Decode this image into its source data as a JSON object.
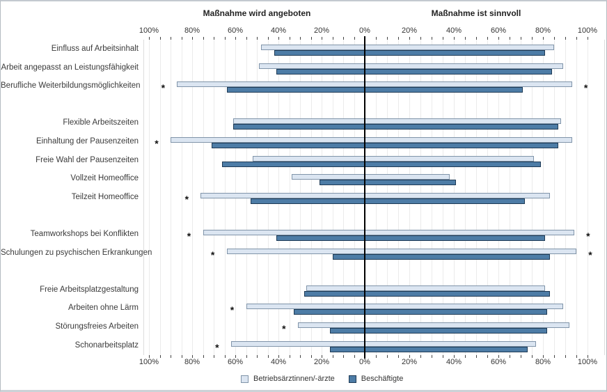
{
  "chart_data": {
    "type": "bar",
    "variant": "diverging-horizontal",
    "left_title": "Maßnahme wird angeboten",
    "right_title": "Maßnahme ist sinnvoll",
    "axis_tick_labels": [
      "100%",
      "80%",
      "60%",
      "40%",
      "20%",
      "0%",
      "20%",
      "40%",
      "60%",
      "80%",
      "100%"
    ],
    "axis_tick_values": [
      -100,
      -80,
      -60,
      -40,
      -20,
      0,
      20,
      40,
      60,
      80,
      100
    ],
    "xlim_left": 100,
    "xlim_right": 100,
    "grid_step_pct": 5,
    "significance_marker": "*",
    "series_names": [
      "Betriebsärztinnen/-ärzte",
      "Beschäftigte"
    ],
    "colors": {
      "betriebsaerzte_fill": "#dbe5f1",
      "betriebsaerzte_border": "#8094a9",
      "beschaeftigte_fill": "#4d7ca6",
      "beschaeftigte_border": "#1e3a55",
      "center_line": "#000000",
      "gridline": "#ebebeb"
    },
    "legend": [
      {
        "label": "Betriebsärztinnen/-ärzte",
        "swatch": "light"
      },
      {
        "label": "Beschäftigte",
        "swatch": "dark"
      }
    ],
    "groups": [
      {
        "rows": [
          {
            "label": "Einfluss auf Arbeitsinhalt",
            "angeboten": {
              "betriebsaerzte": 48,
              "beschaeftigte": 42
            },
            "sinnvoll": {
              "betriebsaerzte": 85,
              "beschaeftigte": 81
            },
            "sig_angeboten": false,
            "sig_sinnvoll": false
          },
          {
            "label": "Arbeit angepasst an Leistungsfähigkeit",
            "angeboten": {
              "betriebsaerzte": 49,
              "beschaeftigte": 41
            },
            "sinnvoll": {
              "betriebsaerzte": 89,
              "beschaeftigte": 84
            },
            "sig_angeboten": false,
            "sig_sinnvoll": false
          },
          {
            "label": "Berufliche Weiterbildungsmöglichkeiten",
            "angeboten": {
              "betriebsaerzte": 87,
              "beschaeftigte": 64
            },
            "sinnvoll": {
              "betriebsaerzte": 93,
              "beschaeftigte": 71
            },
            "sig_angeboten": true,
            "sig_sinnvoll": true
          }
        ]
      },
      {
        "rows": [
          {
            "label": "Flexible Arbeitszeiten",
            "angeboten": {
              "betriebsaerzte": 61,
              "beschaeftigte": 61
            },
            "sinnvoll": {
              "betriebsaerzte": 88,
              "beschaeftigte": 87
            },
            "sig_angeboten": false,
            "sig_sinnvoll": false
          },
          {
            "label": "Einhaltung der Pausenzeiten",
            "angeboten": {
              "betriebsaerzte": 90,
              "beschaeftigte": 71
            },
            "sinnvoll": {
              "betriebsaerzte": 93,
              "beschaeftigte": 87
            },
            "sig_angeboten": true,
            "sig_sinnvoll": false
          },
          {
            "label": "Freie Wahl der Pausenzeiten",
            "angeboten": {
              "betriebsaerzte": 52,
              "beschaeftigte": 66
            },
            "sinnvoll": {
              "betriebsaerzte": 76,
              "beschaeftigte": 79
            },
            "sig_angeboten": false,
            "sig_sinnvoll": false
          },
          {
            "label": "Vollzeit Homeoffice",
            "angeboten": {
              "betriebsaerzte": 34,
              "beschaeftigte": 21
            },
            "sinnvoll": {
              "betriebsaerzte": 38,
              "beschaeftigte": 41
            },
            "sig_angeboten": false,
            "sig_sinnvoll": false
          },
          {
            "label": "Teilzeit Homeoffice",
            "angeboten": {
              "betriebsaerzte": 76,
              "beschaeftigte": 53
            },
            "sinnvoll": {
              "betriebsaerzte": 83,
              "beschaeftigte": 72
            },
            "sig_angeboten": true,
            "sig_sinnvoll": false
          }
        ]
      },
      {
        "rows": [
          {
            "label": "Teamworkshops bei Konflikten",
            "angeboten": {
              "betriebsaerzte": 75,
              "beschaeftigte": 41
            },
            "sinnvoll": {
              "betriebsaerzte": 94,
              "beschaeftigte": 81
            },
            "sig_angeboten": true,
            "sig_sinnvoll": true
          },
          {
            "label": "Schulungen zu psychischen Erkrankungen",
            "angeboten": {
              "betriebsaerzte": 64,
              "beschaeftigte": 15
            },
            "sinnvoll": {
              "betriebsaerzte": 95,
              "beschaeftigte": 83
            },
            "sig_angeboten": true,
            "sig_sinnvoll": true
          }
        ]
      },
      {
        "rows": [
          {
            "label": "Freie Arbeitsplatzgestaltung",
            "angeboten": {
              "betriebsaerzte": 27,
              "beschaeftigte": 28
            },
            "sinnvoll": {
              "betriebsaerzte": 81,
              "beschaeftigte": 83
            },
            "sig_angeboten": false,
            "sig_sinnvoll": false
          },
          {
            "label": "Arbeiten ohne Lärm",
            "angeboten": {
              "betriebsaerzte": 55,
              "beschaeftigte": 33
            },
            "sinnvoll": {
              "betriebsaerzte": 89,
              "beschaeftigte": 82
            },
            "sig_angeboten": true,
            "sig_sinnvoll": false
          },
          {
            "label": "Störungsfreies Arbeiten",
            "angeboten": {
              "betriebsaerzte": 31,
              "beschaeftigte": 16
            },
            "sinnvoll": {
              "betriebsaerzte": 92,
              "beschaeftigte": 82
            },
            "sig_angeboten": true,
            "sig_sinnvoll": false
          },
          {
            "label": "Schonarbeitsplatz",
            "angeboten": {
              "betriebsaerzte": 62,
              "beschaeftigte": 16
            },
            "sinnvoll": {
              "betriebsaerzte": 77,
              "beschaeftigte": 73
            },
            "sig_angeboten": true,
            "sig_sinnvoll": false
          }
        ]
      }
    ]
  }
}
